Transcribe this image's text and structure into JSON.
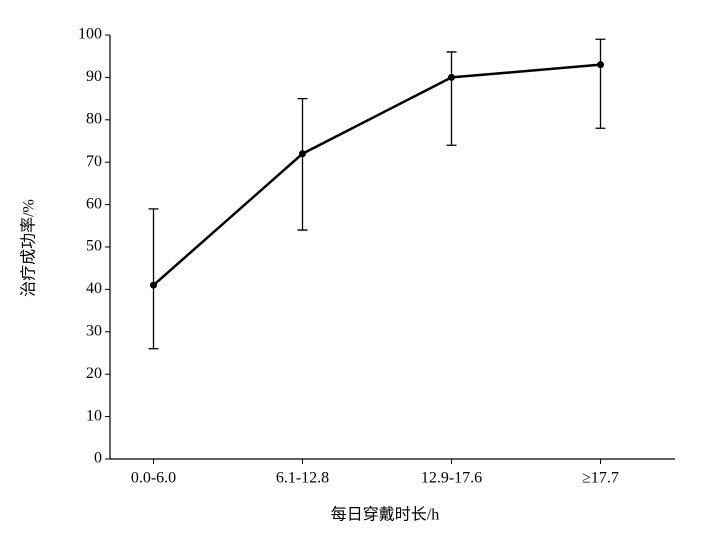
{
  "chart_data": {
    "type": "line",
    "x_label": "每日穿戴时长/h",
    "y_label": "治疗成功率/%",
    "categories": [
      "0.0-6.0",
      "6.1-12.8",
      "12.9-17.6",
      "≥17.7"
    ],
    "series": [
      {
        "name": "治疗成功率",
        "color": "#000000",
        "values": [
          41,
          72,
          90,
          93
        ],
        "lower": [
          26,
          54,
          74,
          78
        ],
        "upper": [
          59,
          85,
          96,
          99
        ]
      }
    ],
    "ylim": [
      0,
      100
    ],
    "yticks": [
      0,
      10,
      20,
      30,
      40,
      50,
      60,
      70,
      80,
      90,
      100
    ],
    "grid": false
  }
}
